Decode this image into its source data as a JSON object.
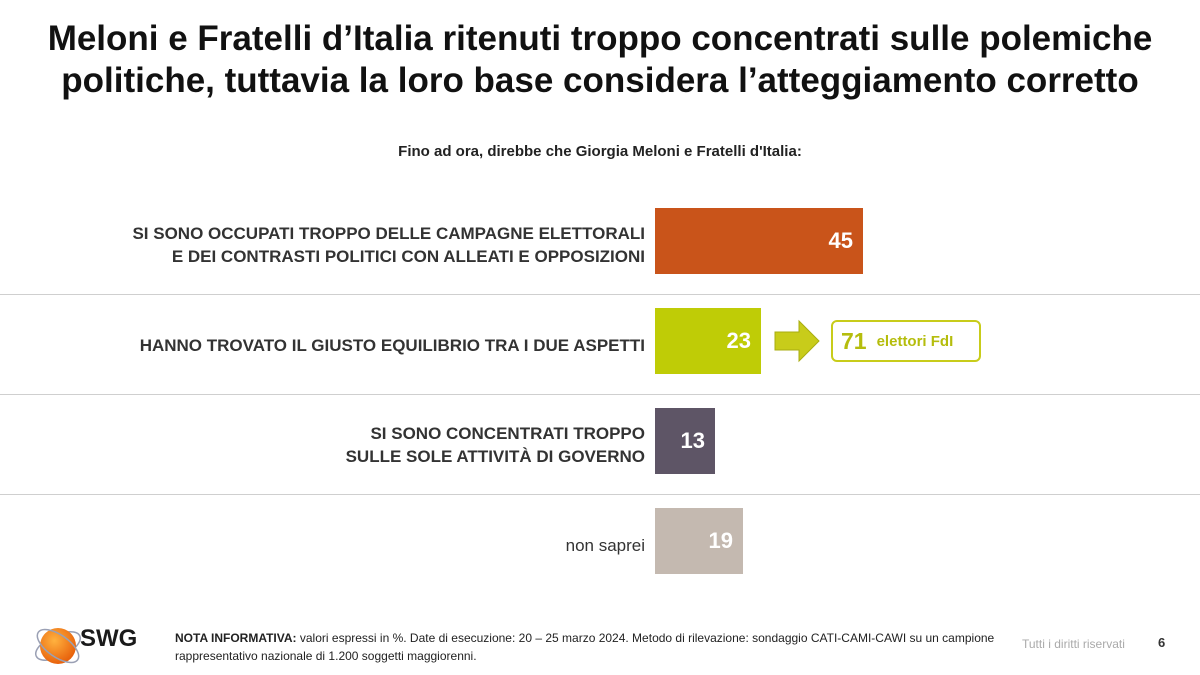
{
  "title_lines": [
    "Meloni e Fratelli d’Italia ritenuti troppo concentrati sulle polemiche",
    "politiche, tuttavia la loro base considera l’atteggiamento corretto"
  ],
  "subtitle": "Fino ad ora, direbbe che Giorgia Meloni e Fratelli d'Italia:",
  "chart_data": {
    "type": "bar",
    "orientation": "horizontal",
    "categories": [
      [
        "SI SONO OCCUPATI TROPPO DELLE CAMPAGNE ELETTORALI",
        "E DEI CONTRASTI POLITICI CON ALLEATI E OPPOSIZIONI"
      ],
      [
        "HANNO TROVATO IL GIUSTO EQUILIBRIO TRA I DUE ASPETTI"
      ],
      [
        "SI SONO CONCENTRATI TROPPO",
        "SULLE SOLE ATTIVITÀ DI GOVERNO"
      ],
      [
        "non saprei"
      ]
    ],
    "values": [
      45,
      23,
      13,
      19
    ],
    "value_labels": [
      "45",
      "23",
      "13",
      "19"
    ],
    "colors": [
      "#c9541a",
      "#bfcc06",
      "#5e5566",
      "#c4b9b0"
    ],
    "label_bold": [
      true,
      true,
      true,
      false
    ],
    "grid": false,
    "callout": {
      "category_index": 1,
      "value": "71",
      "label": "elettori FdI",
      "color": "#c8cc1a"
    }
  },
  "footer": {
    "logo_text": "SWG",
    "note_bold": "NOTA INFORMATIVA:",
    "note_text": " valori espressi in %. Date di esecuzione: 20 – 25 marzo 2024. Metodo di rilevazione: sondaggio CATI-CAMI-CAWI su un campione rappresentativo nazionale di 1.200 soggetti maggiorenni.",
    "rights": "Tutti i diritti riservati",
    "page_number": "6"
  }
}
